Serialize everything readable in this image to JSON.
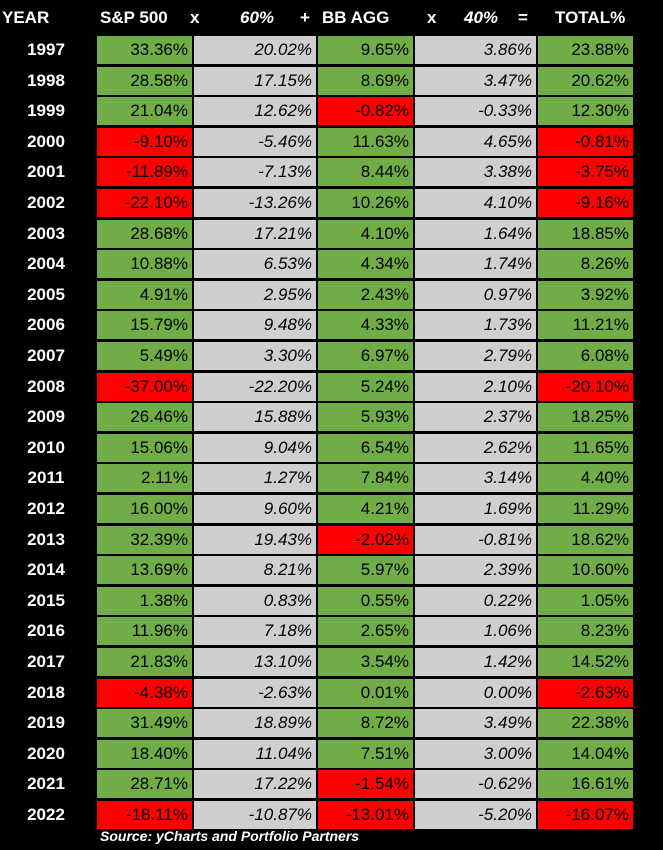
{
  "header": {
    "year": "YEAR",
    "sp500": "S&P 500",
    "times1": "x",
    "weight1": "60%",
    "plus": "+",
    "bbagg": "BB AGG",
    "times2": "x",
    "weight2": "40%",
    "equals": "=",
    "total": "TOTAL%"
  },
  "colors": {
    "positive": "#70ad47",
    "negative": "#ff0000",
    "weighted": "#d0cece",
    "background": "#000000"
  },
  "chart_data": {
    "type": "table",
    "columns": [
      "YEAR",
      "S&P 500",
      "60%",
      "BB AGG",
      "40%",
      "TOTAL%"
    ],
    "rows": [
      {
        "year": "1997",
        "sp500": "33.36%",
        "sp60": "20.02%",
        "bbagg": "9.65%",
        "bb40": "3.86%",
        "total": "23.88%"
      },
      {
        "year": "1998",
        "sp500": "28.58%",
        "sp60": "17.15%",
        "bbagg": "8.69%",
        "bb40": "3.47%",
        "total": "20.62%"
      },
      {
        "year": "1999",
        "sp500": "21.04%",
        "sp60": "12.62%",
        "bbagg": "-0.82%",
        "bb40": "-0.33%",
        "total": "12.30%"
      },
      {
        "year": "2000",
        "sp500": "-9.10%",
        "sp60": "-5.46%",
        "bbagg": "11.63%",
        "bb40": "4.65%",
        "total": "-0.81%"
      },
      {
        "year": "2001",
        "sp500": "-11.89%",
        "sp60": "-7.13%",
        "bbagg": "8.44%",
        "bb40": "3.38%",
        "total": "-3.75%"
      },
      {
        "year": "2002",
        "sp500": "-22.10%",
        "sp60": "-13.26%",
        "bbagg": "10.26%",
        "bb40": "4.10%",
        "total": "-9.16%"
      },
      {
        "year": "2003",
        "sp500": "28.68%",
        "sp60": "17.21%",
        "bbagg": "4.10%",
        "bb40": "1.64%",
        "total": "18.85%"
      },
      {
        "year": "2004",
        "sp500": "10.88%",
        "sp60": "6.53%",
        "bbagg": "4.34%",
        "bb40": "1.74%",
        "total": "8.26%"
      },
      {
        "year": "2005",
        "sp500": "4.91%",
        "sp60": "2.95%",
        "bbagg": "2.43%",
        "bb40": "0.97%",
        "total": "3.92%"
      },
      {
        "year": "2006",
        "sp500": "15.79%",
        "sp60": "9.48%",
        "bbagg": "4.33%",
        "bb40": "1.73%",
        "total": "11.21%"
      },
      {
        "year": "2007",
        "sp500": "5.49%",
        "sp60": "3.30%",
        "bbagg": "6.97%",
        "bb40": "2.79%",
        "total": "6.08%"
      },
      {
        "year": "2008",
        "sp500": "-37.00%",
        "sp60": "-22.20%",
        "bbagg": "5.24%",
        "bb40": "2.10%",
        "total": "-20.10%"
      },
      {
        "year": "2009",
        "sp500": "26.46%",
        "sp60": "15.88%",
        "bbagg": "5.93%",
        "bb40": "2.37%",
        "total": "18.25%"
      },
      {
        "year": "2010",
        "sp500": "15.06%",
        "sp60": "9.04%",
        "bbagg": "6.54%",
        "bb40": "2.62%",
        "total": "11.65%"
      },
      {
        "year": "2011",
        "sp500": "2.11%",
        "sp60": "1.27%",
        "bbagg": "7.84%",
        "bb40": "3.14%",
        "total": "4.40%"
      },
      {
        "year": "2012",
        "sp500": "16.00%",
        "sp60": "9.60%",
        "bbagg": "4.21%",
        "bb40": "1.69%",
        "total": "11.29%"
      },
      {
        "year": "2013",
        "sp500": "32.39%",
        "sp60": "19.43%",
        "bbagg": "-2.02%",
        "bb40": "-0.81%",
        "total": "18.62%"
      },
      {
        "year": "2014",
        "sp500": "13.69%",
        "sp60": "8.21%",
        "bbagg": "5.97%",
        "bb40": "2.39%",
        "total": "10.60%"
      },
      {
        "year": "2015",
        "sp500": "1.38%",
        "sp60": "0.83%",
        "bbagg": "0.55%",
        "bb40": "0.22%",
        "total": "1.05%"
      },
      {
        "year": "2016",
        "sp500": "11.96%",
        "sp60": "7.18%",
        "bbagg": "2.65%",
        "bb40": "1.06%",
        "total": "8.23%"
      },
      {
        "year": "2017",
        "sp500": "21.83%",
        "sp60": "13.10%",
        "bbagg": "3.54%",
        "bb40": "1.42%",
        "total": "14.52%"
      },
      {
        "year": "2018",
        "sp500": "-4.38%",
        "sp60": "-2.63%",
        "bbagg": "0.01%",
        "bb40": "0.00%",
        "total": "-2.63%"
      },
      {
        "year": "2019",
        "sp500": "31.49%",
        "sp60": "18.89%",
        "bbagg": "8.72%",
        "bb40": "3.49%",
        "total": "22.38%"
      },
      {
        "year": "2020",
        "sp500": "18.40%",
        "sp60": "11.04%",
        "bbagg": "7.51%",
        "bb40": "3.00%",
        "total": "14.04%"
      },
      {
        "year": "2021",
        "sp500": "28.71%",
        "sp60": "17.22%",
        "bbagg": "-1.54%",
        "bb40": "-0.62%",
        "total": "16.61%"
      },
      {
        "year": "2022",
        "sp500": "-18.11%",
        "sp60": "-10.87%",
        "bbagg": "-13.01%",
        "bb40": "-5.20%",
        "total": "-16.07%"
      }
    ]
  },
  "footer": {
    "source": "Source: yCharts and Portfolio Partners"
  }
}
